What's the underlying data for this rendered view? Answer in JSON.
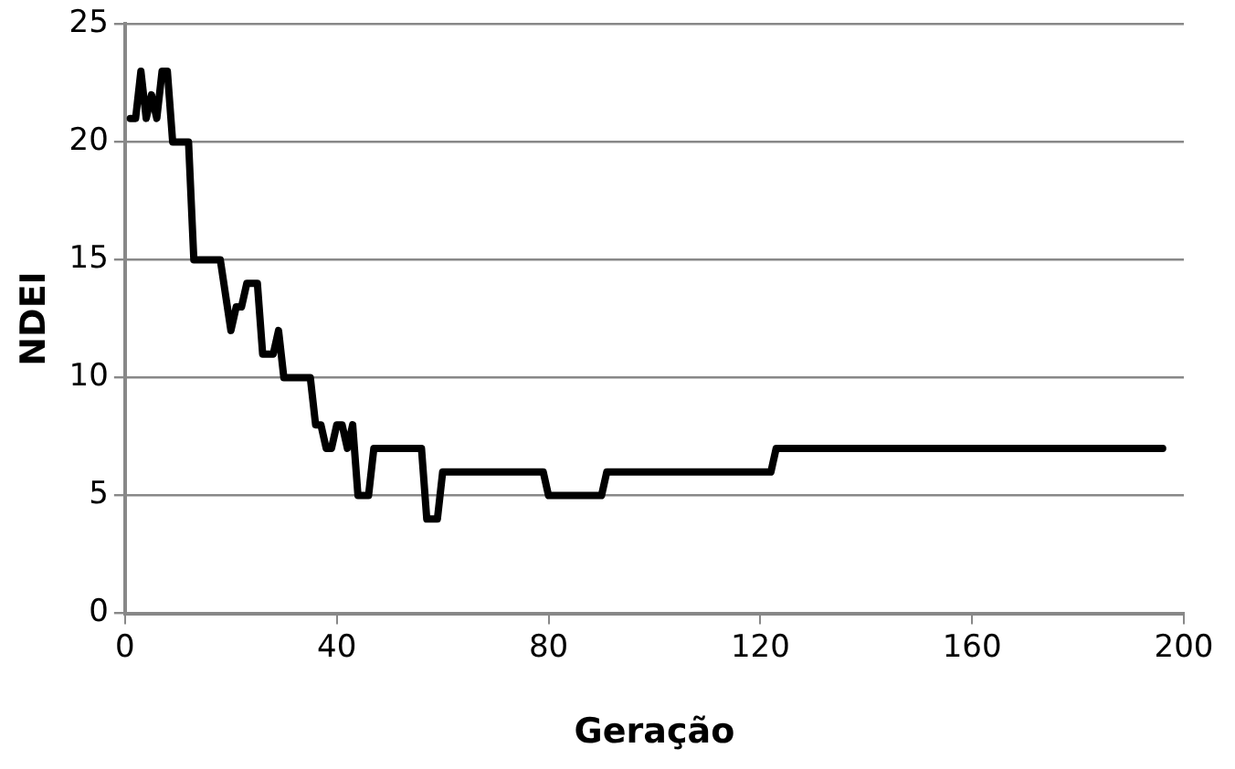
{
  "chart_data": {
    "type": "line",
    "xlabel": "Geração",
    "ylabel": "NDEI",
    "x": [
      1,
      2,
      3,
      4,
      5,
      6,
      7,
      8,
      9,
      11,
      12,
      13,
      18,
      20,
      21,
      22,
      23,
      25,
      26,
      27,
      28,
      29,
      30,
      31,
      35,
      36,
      37,
      38,
      39,
      40,
      41,
      42,
      43,
      44,
      45,
      46,
      47,
      48,
      55,
      56,
      57,
      58,
      59,
      60,
      78,
      79,
      80,
      89,
      90,
      91,
      122,
      123,
      196
    ],
    "series": [
      {
        "color": "#000000",
        "values": [
          21,
          21,
          23,
          21,
          22,
          21,
          23,
          23,
          20,
          20,
          20,
          15,
          15,
          12,
          13,
          13,
          14,
          14,
          11,
          11,
          11,
          12,
          10,
          10,
          10,
          8,
          8,
          7,
          7,
          8,
          8,
          7,
          8,
          5,
          5,
          5,
          7,
          7,
          7,
          7,
          4,
          4,
          4,
          6,
          6,
          6,
          5,
          5,
          5,
          6,
          6,
          7,
          7
        ]
      }
    ],
    "xlim": [
      0,
      200
    ],
    "xticks": [
      0,
      40,
      80,
      120,
      160,
      200
    ],
    "ylim": [
      0,
      25
    ],
    "yticks": [
      0,
      5,
      10,
      15,
      20,
      25
    ],
    "grid": "y",
    "legend": false,
    "marker": "none",
    "line_style": "solid"
  }
}
